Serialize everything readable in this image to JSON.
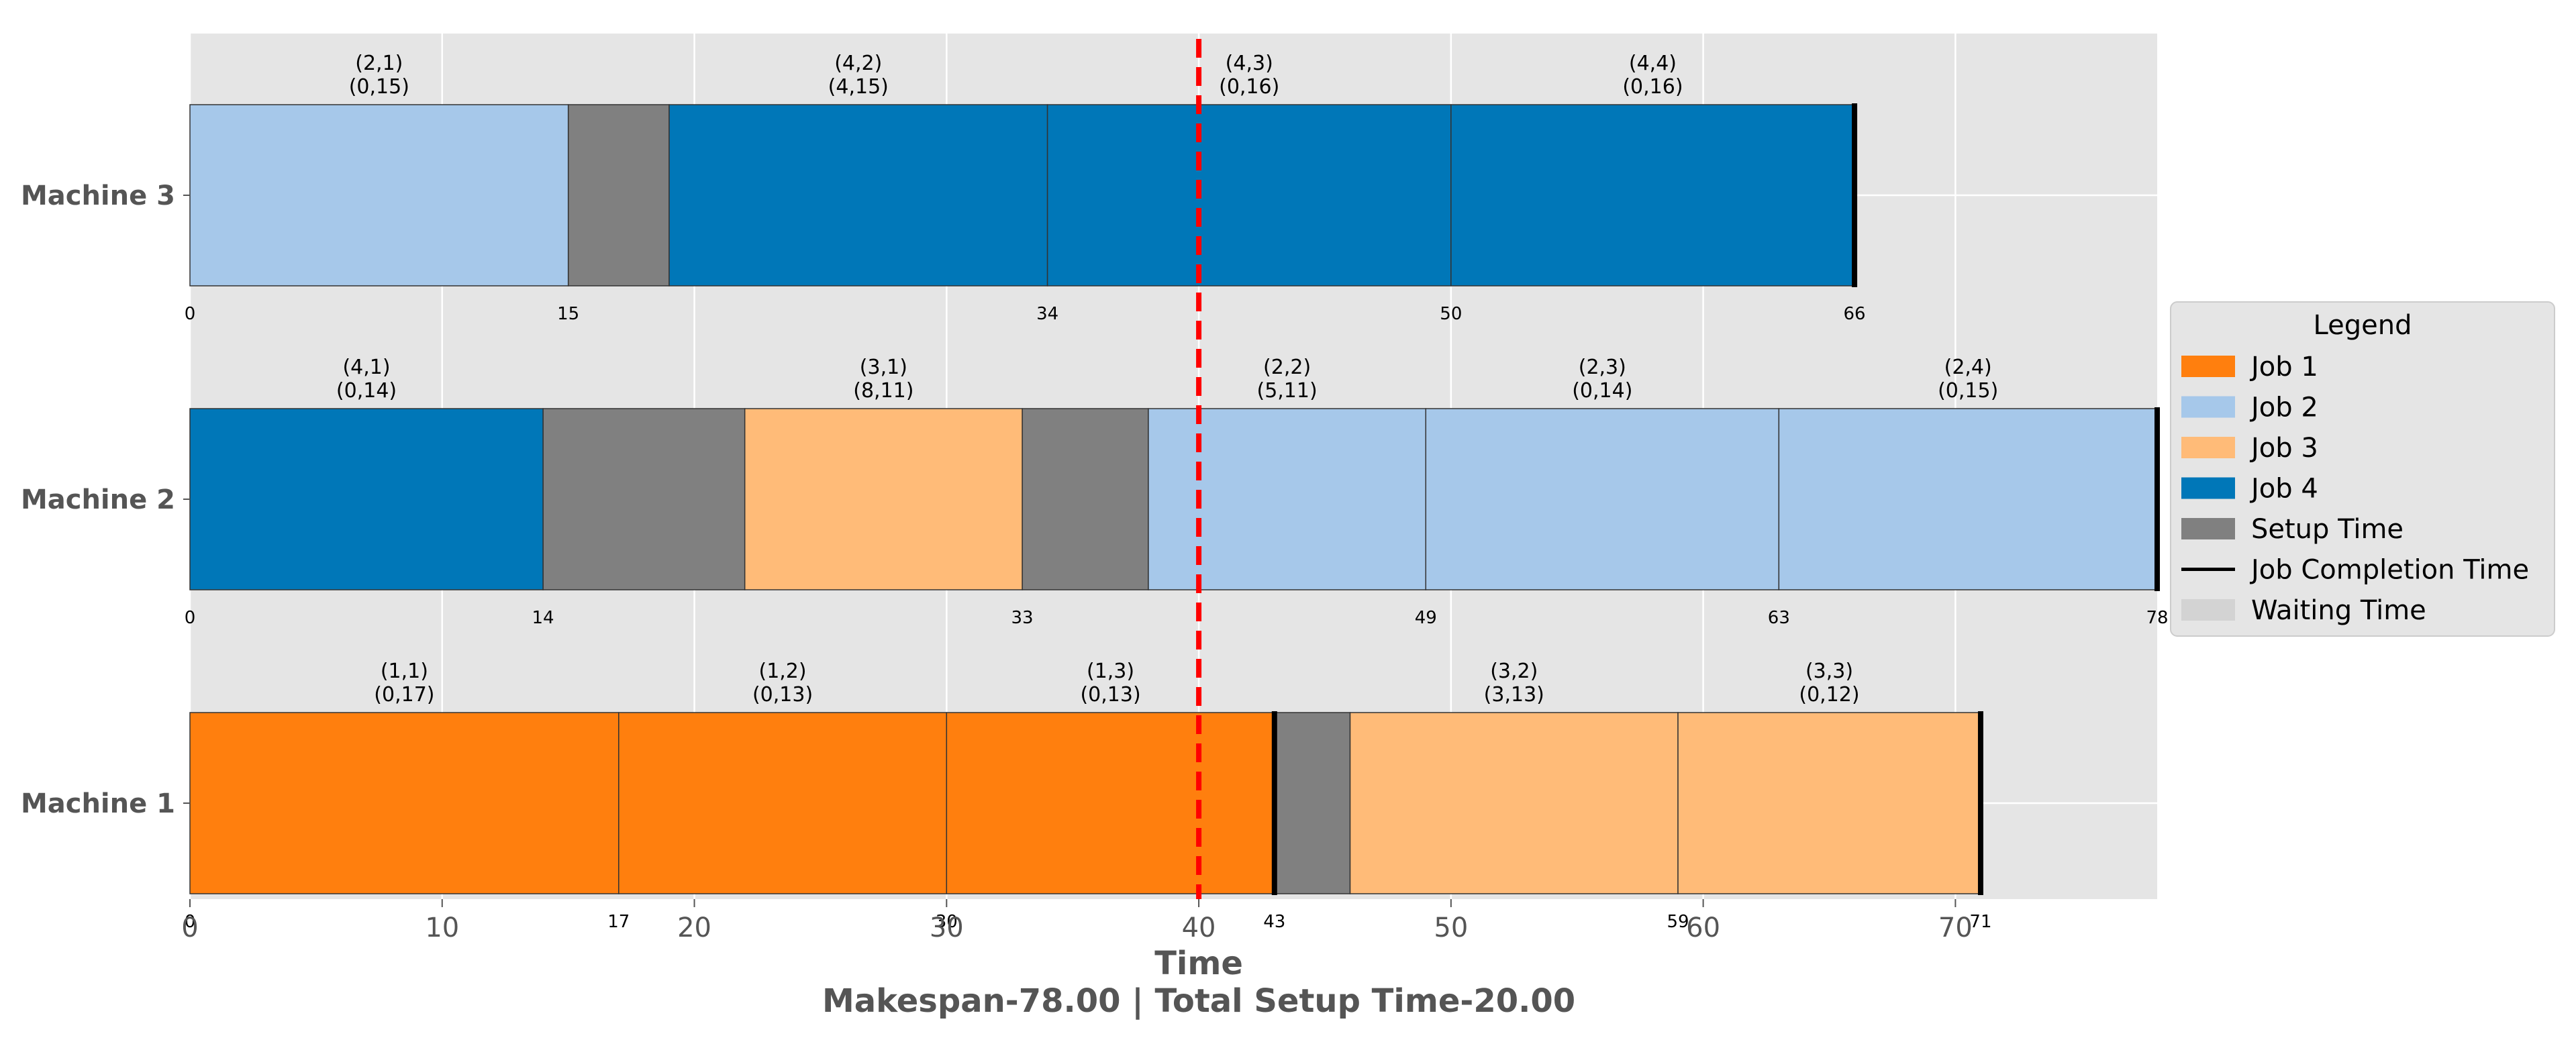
{
  "chart_data": {
    "type": "gantt",
    "title": "",
    "xlabel": "Time",
    "subtitle": "Makespan-78.00 | Total Setup Time-20.00",
    "xlim": [
      0,
      78
    ],
    "xticks": [
      0,
      10,
      20,
      30,
      40,
      50,
      60,
      70
    ],
    "grid": true,
    "current_time": 40,
    "machines": [
      {
        "name": "Machine 3",
        "ops": [
          {
            "job": 2,
            "start": 0,
            "end": 15,
            "label1": "(2,1)",
            "label2": "(0,15)"
          },
          {
            "job": 4,
            "start": 19,
            "end": 34,
            "label1": "(4,2)",
            "label2": "(4,15)"
          },
          {
            "job": 4,
            "start": 34,
            "end": 50,
            "label1": "(4,3)",
            "label2": "(0,16)"
          },
          {
            "job": 4,
            "start": 50,
            "end": 66,
            "label1": "(4,4)",
            "label2": "(0,16)"
          }
        ],
        "setups": [
          {
            "start": 15,
            "end": 19
          }
        ],
        "completions": [
          66
        ],
        "time_marks": [
          {
            "value": 0,
            "label": "0"
          },
          {
            "value": 15,
            "label": "15"
          },
          {
            "value": 34,
            "label": "34"
          },
          {
            "value": 50,
            "label": "50"
          },
          {
            "value": 66,
            "label": "66"
          }
        ]
      },
      {
        "name": "Machine 2",
        "ops": [
          {
            "job": 4,
            "start": 0,
            "end": 14,
            "label1": "(4,1)",
            "label2": "(0,14)"
          },
          {
            "job": 3,
            "start": 22,
            "end": 33,
            "label1": "(3,1)",
            "label2": "(8,11)"
          },
          {
            "job": 2,
            "start": 38,
            "end": 49,
            "label1": "(2,2)",
            "label2": "(5,11)"
          },
          {
            "job": 2,
            "start": 49,
            "end": 63,
            "label1": "(2,3)",
            "label2": "(0,14)"
          },
          {
            "job": 2,
            "start": 63,
            "end": 78,
            "label1": "(2,4)",
            "label2": "(0,15)"
          }
        ],
        "setups": [
          {
            "start": 14,
            "end": 22
          },
          {
            "start": 33,
            "end": 38
          }
        ],
        "completions": [
          78
        ],
        "time_marks": [
          {
            "value": 0,
            "label": "0"
          },
          {
            "value": 14,
            "label": "14"
          },
          {
            "value": 33,
            "label": "33"
          },
          {
            "value": 49,
            "label": "49"
          },
          {
            "value": 63,
            "label": "63"
          },
          {
            "value": 78,
            "label": "78"
          }
        ]
      },
      {
        "name": "Machine 1",
        "ops": [
          {
            "job": 1,
            "start": 0,
            "end": 17,
            "label1": "(1,1)",
            "label2": "(0,17)"
          },
          {
            "job": 1,
            "start": 17,
            "end": 30,
            "label1": "(1,2)",
            "label2": "(0,13)"
          },
          {
            "job": 1,
            "start": 30,
            "end": 43,
            "label1": "(1,3)",
            "label2": "(0,13)"
          },
          {
            "job": 3,
            "start": 46,
            "end": 59,
            "label1": "(3,2)",
            "label2": "(3,13)"
          },
          {
            "job": 3,
            "start": 59,
            "end": 71,
            "label1": "(3,3)",
            "label2": "(0,12)"
          }
        ],
        "setups": [
          {
            "start": 43,
            "end": 46
          }
        ],
        "completions": [
          43,
          71
        ],
        "time_marks": [
          {
            "value": 0,
            "label": "0"
          },
          {
            "value": 17,
            "label": "17"
          },
          {
            "value": 30,
            "label": "30"
          },
          {
            "value": 43,
            "label": "43"
          },
          {
            "value": 59,
            "label": "59"
          },
          {
            "value": 71,
            "label": "71"
          }
        ]
      }
    ],
    "colors": {
      "job1": "#ff7f0e",
      "job2": "#a6c8ea",
      "job3": "#ffbb78",
      "job4": "#0077b8",
      "setup": "#808080",
      "waiting": "#d3d3d3",
      "current_time": "#ff0000",
      "plot_bg": "#e5e5e5"
    },
    "legend": {
      "title": "Legend",
      "placement": "right",
      "items": [
        {
          "label": "Job 1",
          "kind": "patch",
          "color": "#ff7f0e"
        },
        {
          "label": "Job 2",
          "kind": "patch",
          "color": "#a6c8ea"
        },
        {
          "label": "Job 3",
          "kind": "patch",
          "color": "#ffbb78"
        },
        {
          "label": "Job 4",
          "kind": "patch",
          "color": "#0077b8"
        },
        {
          "label": "Setup Time",
          "kind": "patch",
          "color": "#808080"
        },
        {
          "label": "Job Completion Time",
          "kind": "line",
          "color": "#000000"
        },
        {
          "label": "Waiting Time",
          "kind": "patch",
          "color": "#d3d3d3"
        }
      ]
    }
  }
}
